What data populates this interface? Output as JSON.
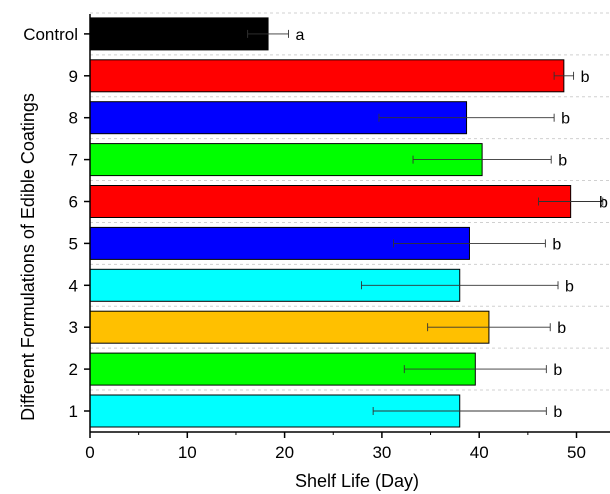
{
  "chart_data": {
    "type": "bar",
    "orientation": "horizontal",
    "title": "",
    "xlabel": "Shelf Life (Day)",
    "ylabel": "Different Formulations of Edible Coatings",
    "xlim": [
      0,
      54
    ],
    "x_ticks": [
      0,
      10,
      20,
      30,
      40,
      50
    ],
    "grid": "horizontal dashed",
    "categories": [
      "1",
      "2",
      "3",
      "4",
      "5",
      "6",
      "7",
      "8",
      "9",
      "Control"
    ],
    "values": [
      38.0,
      39.6,
      41.0,
      38.0,
      39.0,
      49.4,
      40.3,
      38.7,
      48.7,
      18.3
    ],
    "errors": [
      8.9,
      7.3,
      6.3,
      10.1,
      7.8,
      3.3,
      7.1,
      9.0,
      1.0,
      2.1
    ],
    "significance": [
      "b",
      "b",
      "b",
      "b",
      "b",
      "b",
      "b",
      "b",
      "b",
      "a"
    ],
    "colors": [
      "#00ffff",
      "#00ff00",
      "#ffc000",
      "#00ffff",
      "#0000ff",
      "#ff0000",
      "#00ff00",
      "#0000ff",
      "#ff0000",
      "#000000"
    ]
  }
}
